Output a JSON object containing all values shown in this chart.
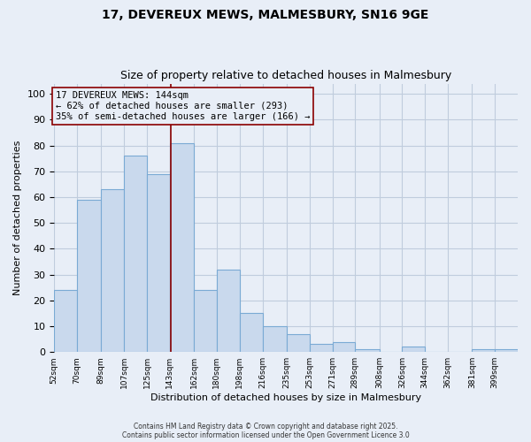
{
  "title_line1": "17, DEVEREUX MEWS, MALMESBURY, SN16 9GE",
  "title_line2": "Size of property relative to detached houses in Malmesbury",
  "xlabel": "Distribution of detached houses by size in Malmesbury",
  "ylabel": "Number of detached properties",
  "bar_edges": [
    52,
    70,
    89,
    107,
    125,
    143,
    162,
    180,
    198,
    216,
    235,
    253,
    271,
    289,
    308,
    326,
    344,
    362,
    381,
    399,
    417
  ],
  "bar_heights": [
    24,
    59,
    63,
    76,
    69,
    81,
    24,
    32,
    15,
    10,
    7,
    3,
    4,
    1,
    0,
    2,
    0,
    0,
    1,
    1
  ],
  "bar_color": "#c9d9ed",
  "bar_edgecolor": "#7aaad4",
  "grid_color": "#c0ccdd",
  "property_line_x": 144,
  "property_line_color": "#8b0000",
  "annotation_line1": "17 DEVEREUX MEWS: 144sqm",
  "annotation_line2": "← 62% of detached houses are smaller (293)",
  "annotation_line3": "35% of semi-detached houses are larger (166) →",
  "annotation_box_color": "#8b0000",
  "annotation_text_fontsize": 7.5,
  "ylim": [
    0,
    104
  ],
  "yticks": [
    0,
    10,
    20,
    30,
    40,
    50,
    60,
    70,
    80,
    90,
    100
  ],
  "footnote1": "Contains HM Land Registry data © Crown copyright and database right 2025.",
  "footnote2": "Contains public sector information licensed under the Open Government Licence 3.0",
  "background_color": "#e8eef7"
}
